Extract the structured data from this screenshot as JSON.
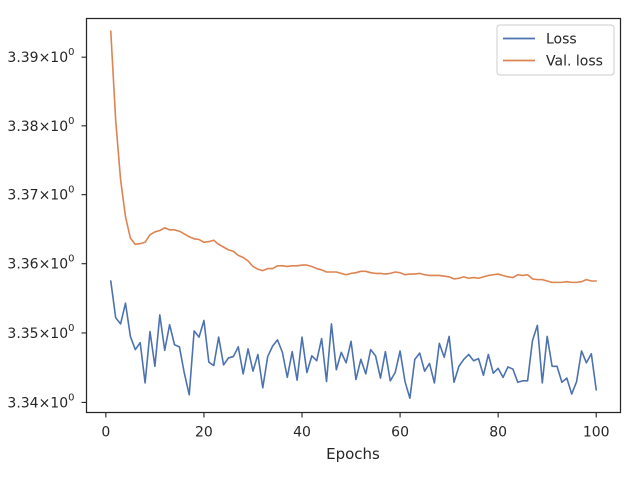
{
  "chart_data": {
    "type": "line",
    "title": "",
    "xlabel": "Epochs",
    "ylabel": "",
    "xlim": [
      -3.95,
      104.95
    ],
    "ylim": [
      3.33855,
      3.39565
    ],
    "yscale": "log",
    "grid": false,
    "legend_position": "top-right",
    "x_ticks": [
      0,
      20,
      40,
      60,
      80,
      100
    ],
    "x_tick_labels": [
      "0",
      "20",
      "40",
      "60",
      "80",
      "100"
    ],
    "y_ticks": [
      3.34,
      3.35,
      3.36,
      3.37,
      3.38,
      3.39
    ],
    "y_tick_labels": [
      {
        "mantissa": "3.34",
        "exp": "0"
      },
      {
        "mantissa": "3.35",
        "exp": "0"
      },
      {
        "mantissa": "3.36",
        "exp": "0"
      },
      {
        "mantissa": "3.37",
        "exp": "0"
      },
      {
        "mantissa": "3.38",
        "exp": "0"
      },
      {
        "mantissa": "3.39",
        "exp": "0"
      }
    ],
    "x": [
      1,
      2,
      3,
      4,
      5,
      6,
      7,
      8,
      9,
      10,
      11,
      12,
      13,
      14,
      15,
      16,
      17,
      18,
      19,
      20,
      21,
      22,
      23,
      24,
      25,
      26,
      27,
      28,
      29,
      30,
      31,
      32,
      33,
      34,
      35,
      36,
      37,
      38,
      39,
      40,
      41,
      42,
      43,
      44,
      45,
      46,
      47,
      48,
      49,
      50,
      51,
      52,
      53,
      54,
      55,
      56,
      57,
      58,
      59,
      60,
      61,
      62,
      63,
      64,
      65,
      66,
      67,
      68,
      69,
      70,
      71,
      72,
      73,
      74,
      75,
      76,
      77,
      78,
      79,
      80,
      81,
      82,
      83,
      84,
      85,
      86,
      87,
      88,
      89,
      90,
      91,
      92,
      93,
      94,
      95,
      96,
      97,
      98,
      99,
      100
    ],
    "series": [
      {
        "name": "Loss",
        "color": "#4c72b0",
        "values": [
          3.3575,
          3.3522,
          3.3513,
          3.3543,
          3.3495,
          3.3476,
          3.3486,
          3.3428,
          3.3502,
          3.3452,
          3.3526,
          3.3475,
          3.3512,
          3.3483,
          3.348,
          3.3442,
          3.3411,
          3.3503,
          3.3494,
          3.3518,
          3.3458,
          3.3453,
          3.3494,
          3.3454,
          3.3464,
          3.3466,
          3.348,
          3.3441,
          3.3477,
          3.3445,
          3.3469,
          3.3421,
          3.3466,
          3.3481,
          3.349,
          3.3472,
          3.3436,
          3.3473,
          3.3432,
          3.3494,
          3.3443,
          3.3467,
          3.346,
          3.3492,
          3.343,
          3.3513,
          3.3447,
          3.3472,
          3.3457,
          3.3488,
          3.3433,
          3.3462,
          3.3441,
          3.3476,
          3.3467,
          3.3435,
          3.3473,
          3.3431,
          3.3443,
          3.3474,
          3.343,
          3.3406,
          3.3462,
          3.3471,
          3.3445,
          3.3456,
          3.3428,
          3.3485,
          3.3465,
          3.3495,
          3.3429,
          3.3452,
          3.3462,
          3.3469,
          3.346,
          3.3463,
          3.3439,
          3.3469,
          3.3442,
          3.3449,
          3.3436,
          3.3451,
          3.3448,
          3.3429,
          3.3431,
          3.3431,
          3.3489,
          3.3511,
          3.3428,
          3.3495,
          3.3452,
          3.3452,
          3.3429,
          3.3435,
          3.3412,
          3.343,
          3.3474,
          3.3457,
          3.347,
          3.3418
        ]
      },
      {
        "name": "Val. loss",
        "color": "#dd8452",
        "values": [
          3.3938,
          3.3808,
          3.3722,
          3.3668,
          3.3637,
          3.3628,
          3.3629,
          3.3631,
          3.3642,
          3.3646,
          3.3648,
          3.3652,
          3.3649,
          3.3649,
          3.3647,
          3.3643,
          3.3639,
          3.3636,
          3.3635,
          3.3631,
          3.3632,
          3.3634,
          3.3628,
          3.3624,
          3.362,
          3.3618,
          3.3612,
          3.3609,
          3.3604,
          3.3596,
          3.3592,
          3.359,
          3.3593,
          3.3593,
          3.3597,
          3.3597,
          3.3596,
          3.3597,
          3.3597,
          3.3598,
          3.3598,
          3.3596,
          3.3593,
          3.3591,
          3.3588,
          3.3588,
          3.3588,
          3.3586,
          3.3584,
          3.3586,
          3.3587,
          3.3589,
          3.3589,
          3.3587,
          3.3586,
          3.3586,
          3.3585,
          3.3586,
          3.3588,
          3.3587,
          3.3584,
          3.3585,
          3.3585,
          3.3586,
          3.3584,
          3.3583,
          3.3583,
          3.3583,
          3.3582,
          3.3581,
          3.3578,
          3.3579,
          3.3581,
          3.3579,
          3.358,
          3.3579,
          3.3581,
          3.3583,
          3.3584,
          3.3585,
          3.3583,
          3.3581,
          3.358,
          3.3584,
          3.3583,
          3.3584,
          3.3578,
          3.3577,
          3.3577,
          3.3575,
          3.3573,
          3.3573,
          3.3573,
          3.3574,
          3.3573,
          3.3573,
          3.3574,
          3.3577,
          3.3575,
          3.3575
        ]
      }
    ]
  }
}
